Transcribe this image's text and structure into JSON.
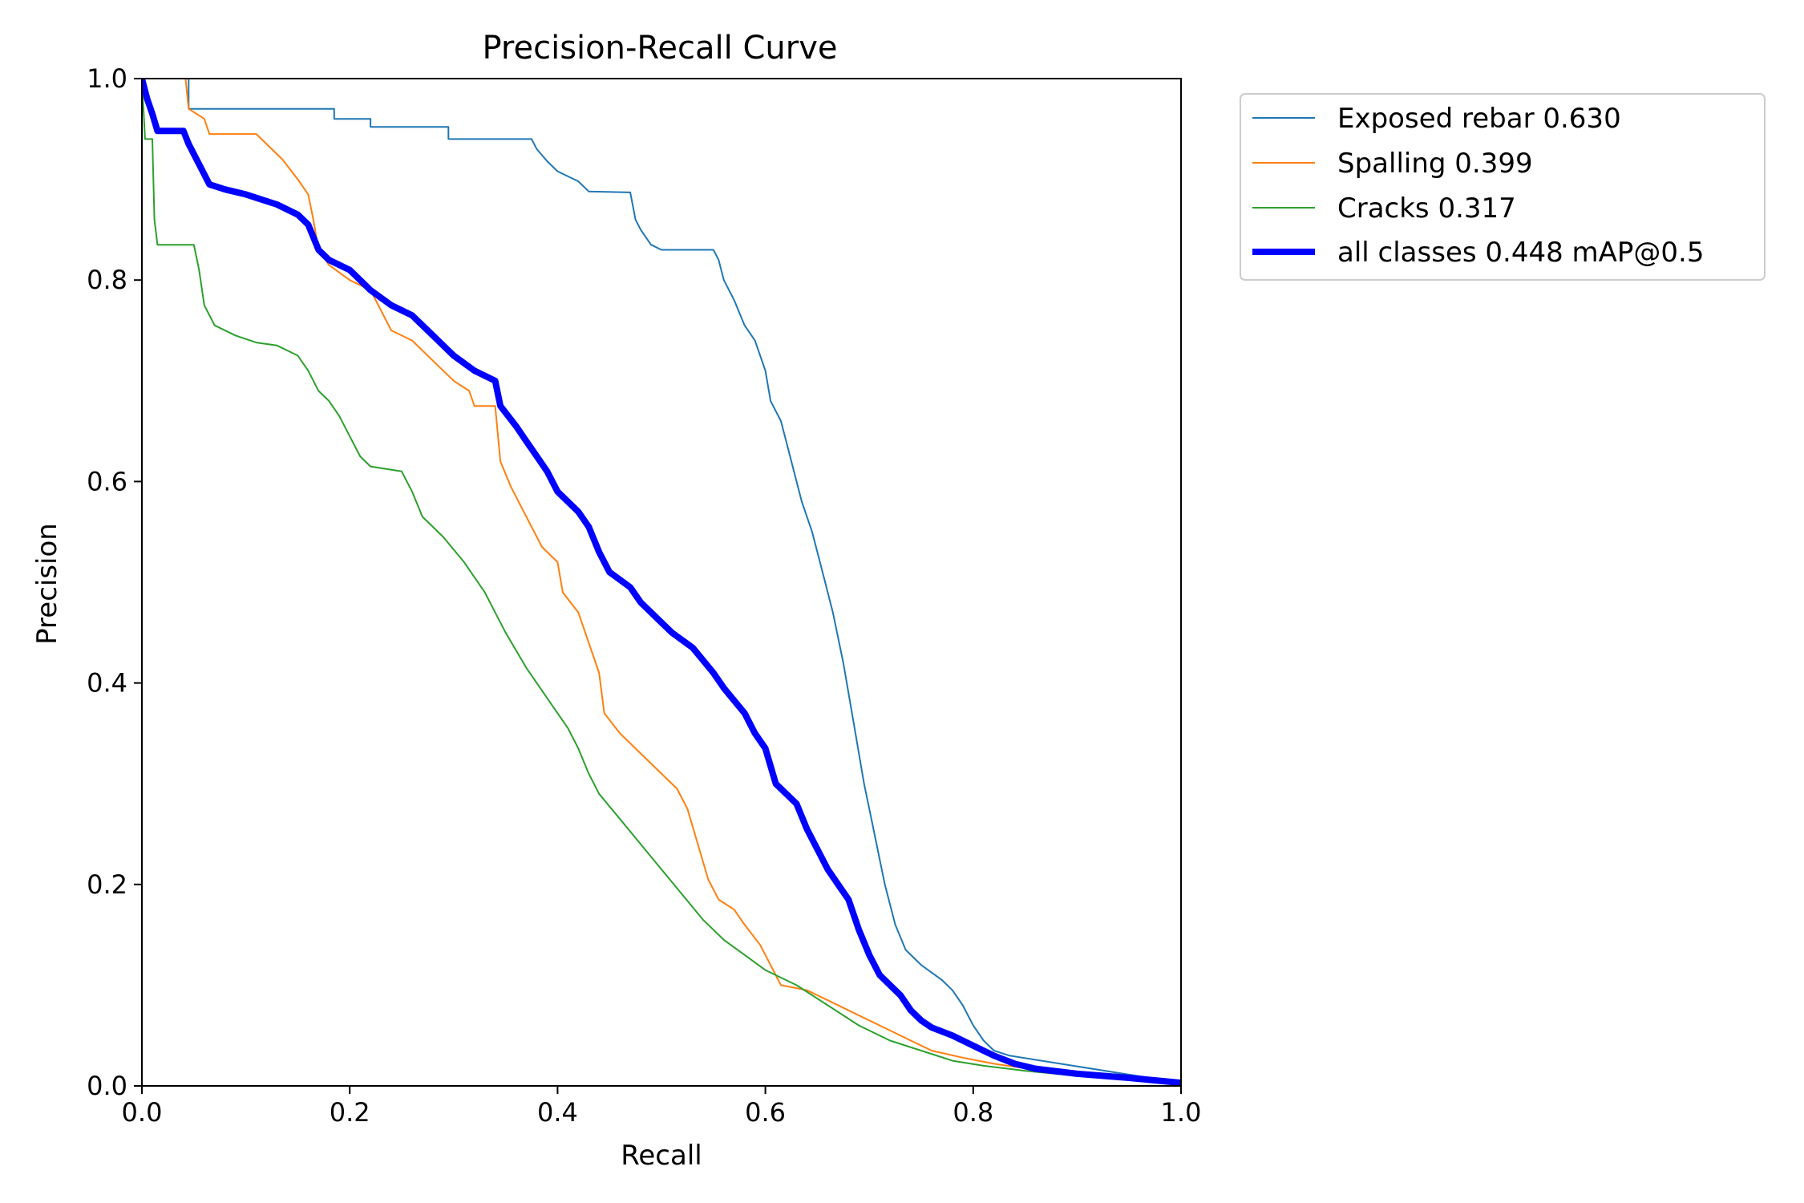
{
  "chart_data": {
    "type": "line",
    "title": "Precision-Recall Curve",
    "xlabel": "Recall",
    "ylabel": "Precision",
    "xlim": [
      0,
      1
    ],
    "ylim": [
      0,
      1
    ],
    "xticks": [
      "0.0",
      "0.2",
      "0.4",
      "0.6",
      "0.8",
      "1.0"
    ],
    "yticks": [
      "0.0",
      "0.2",
      "0.4",
      "0.6",
      "0.8",
      "1.0"
    ],
    "legend_position": "outside-upper-right",
    "grid": false,
    "series": [
      {
        "name": "Exposed rebar",
        "label": "Exposed rebar 0.630",
        "color": "#1f77b4",
        "thick": false,
        "points": [
          [
            0,
            1.0
          ],
          [
            0.045,
            1.0
          ],
          [
            0.045,
            0.97
          ],
          [
            0.185,
            0.97
          ],
          [
            0.185,
            0.96
          ],
          [
            0.22,
            0.96
          ],
          [
            0.22,
            0.952
          ],
          [
            0.295,
            0.952
          ],
          [
            0.295,
            0.94
          ],
          [
            0.375,
            0.94
          ],
          [
            0.38,
            0.93
          ],
          [
            0.39,
            0.918
          ],
          [
            0.4,
            0.908
          ],
          [
            0.42,
            0.898
          ],
          [
            0.43,
            0.888
          ],
          [
            0.47,
            0.887
          ],
          [
            0.475,
            0.86
          ],
          [
            0.48,
            0.85
          ],
          [
            0.49,
            0.835
          ],
          [
            0.5,
            0.83
          ],
          [
            0.55,
            0.83
          ],
          [
            0.555,
            0.82
          ],
          [
            0.56,
            0.8
          ],
          [
            0.57,
            0.78
          ],
          [
            0.58,
            0.755
          ],
          [
            0.59,
            0.74
          ],
          [
            0.6,
            0.71
          ],
          [
            0.605,
            0.68
          ],
          [
            0.615,
            0.66
          ],
          [
            0.625,
            0.62
          ],
          [
            0.635,
            0.58
          ],
          [
            0.645,
            0.55
          ],
          [
            0.655,
            0.51
          ],
          [
            0.665,
            0.47
          ],
          [
            0.675,
            0.42
          ],
          [
            0.685,
            0.36
          ],
          [
            0.695,
            0.3
          ],
          [
            0.705,
            0.25
          ],
          [
            0.715,
            0.2
          ],
          [
            0.725,
            0.16
          ],
          [
            0.735,
            0.135
          ],
          [
            0.75,
            0.12
          ],
          [
            0.77,
            0.105
          ],
          [
            0.78,
            0.095
          ],
          [
            0.79,
            0.08
          ],
          [
            0.8,
            0.06
          ],
          [
            0.81,
            0.045
          ],
          [
            0.82,
            0.035
          ],
          [
            0.835,
            0.03
          ],
          [
            1.0,
            0.003
          ]
        ]
      },
      {
        "name": "Spalling",
        "label": "Spalling 0.399",
        "color": "#ff7f0e",
        "thick": false,
        "points": [
          [
            0,
            1.0
          ],
          [
            0.042,
            1.0
          ],
          [
            0.045,
            0.97
          ],
          [
            0.06,
            0.96
          ],
          [
            0.065,
            0.945
          ],
          [
            0.11,
            0.945
          ],
          [
            0.12,
            0.935
          ],
          [
            0.135,
            0.92
          ],
          [
            0.15,
            0.9
          ],
          [
            0.16,
            0.885
          ],
          [
            0.165,
            0.86
          ],
          [
            0.17,
            0.83
          ],
          [
            0.18,
            0.815
          ],
          [
            0.2,
            0.8
          ],
          [
            0.22,
            0.79
          ],
          [
            0.23,
            0.77
          ],
          [
            0.24,
            0.75
          ],
          [
            0.26,
            0.74
          ],
          [
            0.28,
            0.72
          ],
          [
            0.3,
            0.7
          ],
          [
            0.315,
            0.69
          ],
          [
            0.32,
            0.675
          ],
          [
            0.34,
            0.675
          ],
          [
            0.345,
            0.62
          ],
          [
            0.355,
            0.595
          ],
          [
            0.365,
            0.575
          ],
          [
            0.375,
            0.555
          ],
          [
            0.385,
            0.535
          ],
          [
            0.4,
            0.52
          ],
          [
            0.405,
            0.49
          ],
          [
            0.42,
            0.47
          ],
          [
            0.43,
            0.44
          ],
          [
            0.44,
            0.41
          ],
          [
            0.445,
            0.37
          ],
          [
            0.46,
            0.35
          ],
          [
            0.48,
            0.33
          ],
          [
            0.5,
            0.31
          ],
          [
            0.515,
            0.295
          ],
          [
            0.525,
            0.275
          ],
          [
            0.535,
            0.24
          ],
          [
            0.545,
            0.205
          ],
          [
            0.555,
            0.185
          ],
          [
            0.57,
            0.175
          ],
          [
            0.58,
            0.16
          ],
          [
            0.595,
            0.14
          ],
          [
            0.605,
            0.12
          ],
          [
            0.615,
            0.1
          ],
          [
            0.64,
            0.095
          ],
          [
            0.66,
            0.085
          ],
          [
            0.68,
            0.075
          ],
          [
            0.7,
            0.065
          ],
          [
            0.72,
            0.055
          ],
          [
            0.74,
            0.045
          ],
          [
            0.76,
            0.035
          ],
          [
            0.79,
            0.028
          ],
          [
            0.82,
            0.022
          ],
          [
            0.86,
            0.016
          ],
          [
            0.9,
            0.012
          ],
          [
            1.0,
            0.003
          ]
        ]
      },
      {
        "name": "Cracks",
        "label": "Cracks 0.317",
        "color": "#2ca02c",
        "thick": false,
        "points": [
          [
            0,
            1.0
          ],
          [
            0.003,
            0.94
          ],
          [
            0.01,
            0.94
          ],
          [
            0.012,
            0.86
          ],
          [
            0.015,
            0.835
          ],
          [
            0.05,
            0.835
          ],
          [
            0.055,
            0.81
          ],
          [
            0.06,
            0.775
          ],
          [
            0.07,
            0.755
          ],
          [
            0.09,
            0.745
          ],
          [
            0.11,
            0.738
          ],
          [
            0.13,
            0.735
          ],
          [
            0.15,
            0.725
          ],
          [
            0.16,
            0.71
          ],
          [
            0.17,
            0.69
          ],
          [
            0.18,
            0.68
          ],
          [
            0.19,
            0.665
          ],
          [
            0.2,
            0.645
          ],
          [
            0.21,
            0.625
          ],
          [
            0.22,
            0.615
          ],
          [
            0.25,
            0.61
          ],
          [
            0.26,
            0.59
          ],
          [
            0.27,
            0.565
          ],
          [
            0.29,
            0.545
          ],
          [
            0.31,
            0.52
          ],
          [
            0.33,
            0.49
          ],
          [
            0.34,
            0.47
          ],
          [
            0.35,
            0.45
          ],
          [
            0.37,
            0.415
          ],
          [
            0.39,
            0.385
          ],
          [
            0.41,
            0.355
          ],
          [
            0.42,
            0.335
          ],
          [
            0.43,
            0.31
          ],
          [
            0.44,
            0.29
          ],
          [
            0.46,
            0.265
          ],
          [
            0.48,
            0.24
          ],
          [
            0.5,
            0.215
          ],
          [
            0.52,
            0.19
          ],
          [
            0.54,
            0.165
          ],
          [
            0.56,
            0.145
          ],
          [
            0.58,
            0.13
          ],
          [
            0.6,
            0.115
          ],
          [
            0.63,
            0.1
          ],
          [
            0.66,
            0.08
          ],
          [
            0.69,
            0.06
          ],
          [
            0.72,
            0.045
          ],
          [
            0.75,
            0.035
          ],
          [
            0.78,
            0.025
          ],
          [
            0.81,
            0.02
          ],
          [
            0.85,
            0.015
          ],
          [
            0.9,
            0.01
          ],
          [
            1.0,
            0.003
          ]
        ]
      },
      {
        "name": "all classes",
        "label": "all classes 0.448 mAP@0.5",
        "color": "#0000ff",
        "thick": true,
        "points": [
          [
            0,
            1.0
          ],
          [
            0.005,
            0.98
          ],
          [
            0.01,
            0.965
          ],
          [
            0.015,
            0.948
          ],
          [
            0.04,
            0.948
          ],
          [
            0.045,
            0.935
          ],
          [
            0.05,
            0.925
          ],
          [
            0.055,
            0.915
          ],
          [
            0.065,
            0.895
          ],
          [
            0.08,
            0.89
          ],
          [
            0.1,
            0.885
          ],
          [
            0.13,
            0.875
          ],
          [
            0.15,
            0.865
          ],
          [
            0.16,
            0.855
          ],
          [
            0.17,
            0.83
          ],
          [
            0.18,
            0.82
          ],
          [
            0.2,
            0.81
          ],
          [
            0.21,
            0.8
          ],
          [
            0.22,
            0.79
          ],
          [
            0.24,
            0.775
          ],
          [
            0.26,
            0.765
          ],
          [
            0.28,
            0.745
          ],
          [
            0.3,
            0.725
          ],
          [
            0.32,
            0.71
          ],
          [
            0.34,
            0.7
          ],
          [
            0.345,
            0.675
          ],
          [
            0.36,
            0.655
          ],
          [
            0.37,
            0.64
          ],
          [
            0.38,
            0.625
          ],
          [
            0.39,
            0.61
          ],
          [
            0.4,
            0.59
          ],
          [
            0.42,
            0.57
          ],
          [
            0.43,
            0.555
          ],
          [
            0.44,
            0.53
          ],
          [
            0.45,
            0.51
          ],
          [
            0.47,
            0.495
          ],
          [
            0.48,
            0.48
          ],
          [
            0.5,
            0.46
          ],
          [
            0.51,
            0.45
          ],
          [
            0.53,
            0.435
          ],
          [
            0.55,
            0.41
          ],
          [
            0.56,
            0.395
          ],
          [
            0.58,
            0.37
          ],
          [
            0.59,
            0.35
          ],
          [
            0.6,
            0.335
          ],
          [
            0.61,
            0.3
          ],
          [
            0.63,
            0.28
          ],
          [
            0.64,
            0.255
          ],
          [
            0.65,
            0.235
          ],
          [
            0.66,
            0.215
          ],
          [
            0.67,
            0.2
          ],
          [
            0.68,
            0.185
          ],
          [
            0.69,
            0.155
          ],
          [
            0.7,
            0.13
          ],
          [
            0.71,
            0.11
          ],
          [
            0.72,
            0.1
          ],
          [
            0.73,
            0.09
          ],
          [
            0.74,
            0.075
          ],
          [
            0.75,
            0.065
          ],
          [
            0.76,
            0.058
          ],
          [
            0.78,
            0.05
          ],
          [
            0.8,
            0.04
          ],
          [
            0.82,
            0.03
          ],
          [
            0.84,
            0.022
          ],
          [
            0.86,
            0.017
          ],
          [
            0.9,
            0.012
          ],
          [
            0.95,
            0.008
          ],
          [
            1.0,
            0.003
          ]
        ]
      }
    ]
  }
}
